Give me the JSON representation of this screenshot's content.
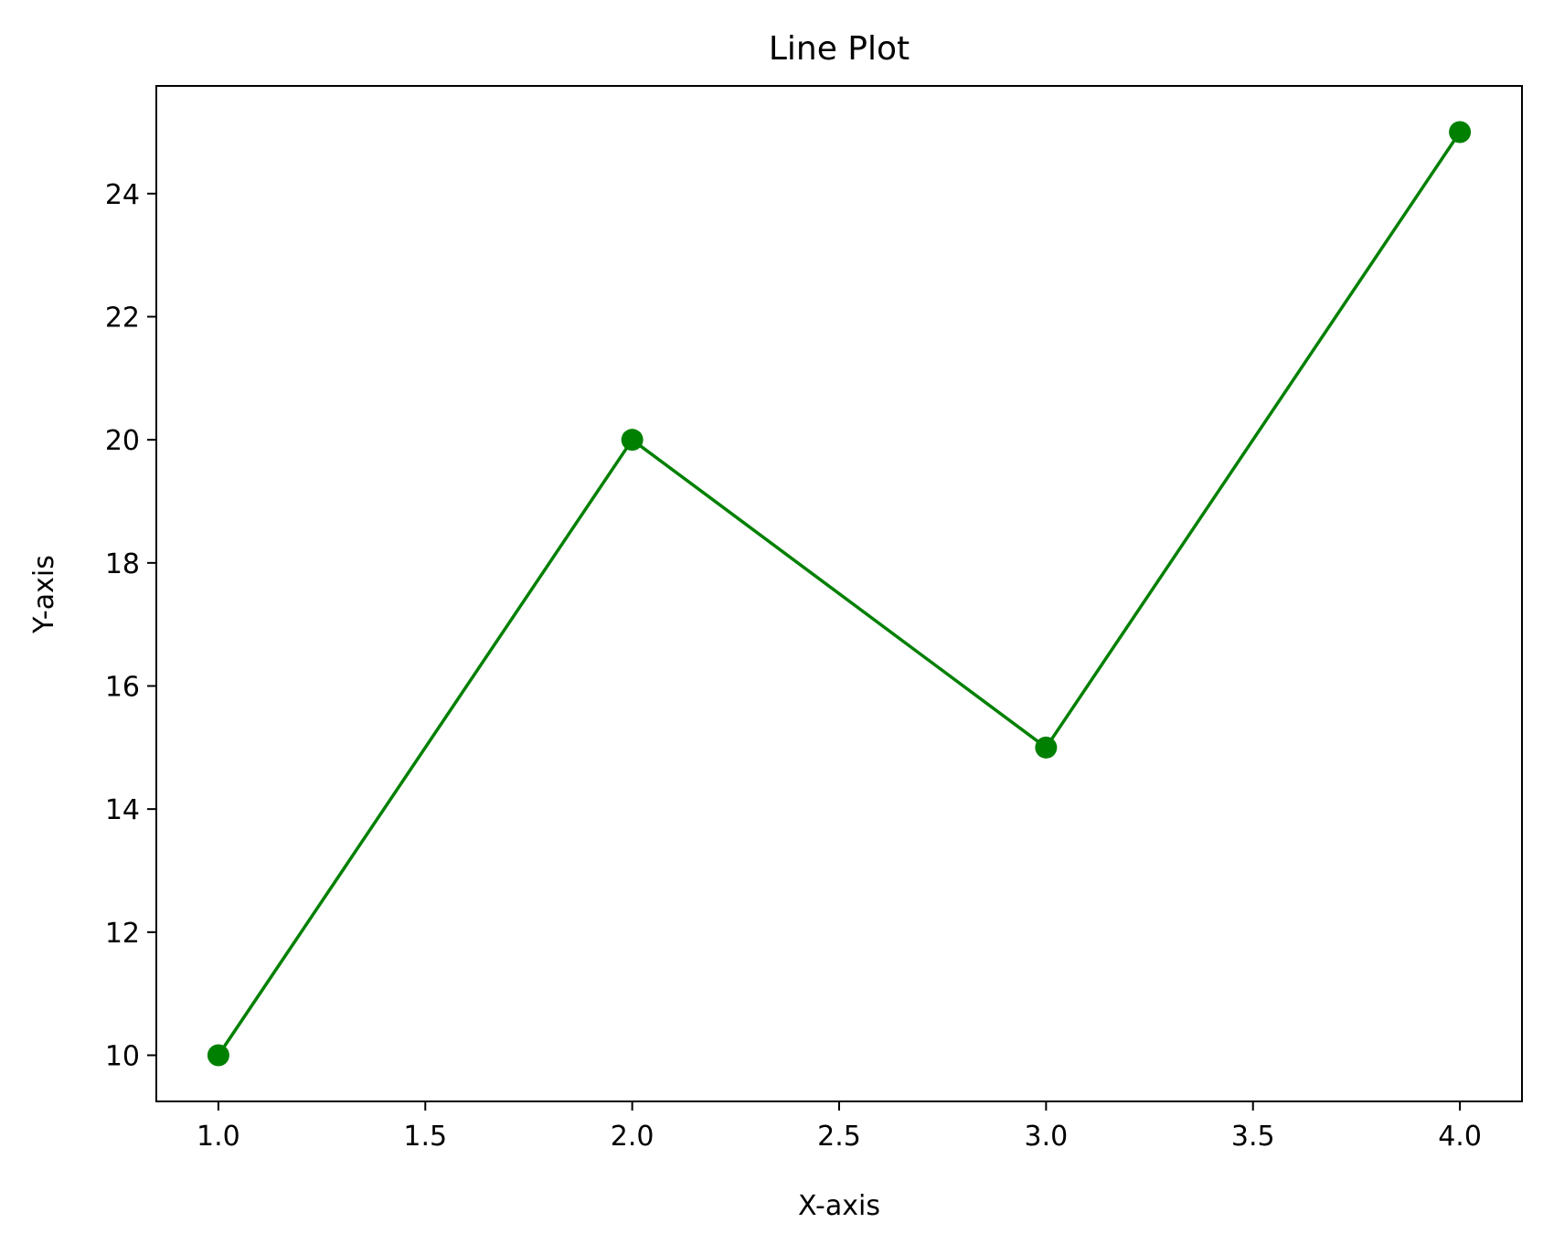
{
  "chart_data": {
    "type": "line",
    "title": "Line Plot",
    "xlabel": "X-axis",
    "ylabel": "Y-axis",
    "x": [
      1,
      2,
      3,
      4
    ],
    "series": [
      {
        "values": [
          10,
          20,
          15,
          25
        ],
        "color": "#008000",
        "marker": "circle"
      }
    ],
    "xlim": [
      0.85,
      4.15
    ],
    "ylim": [
      9.25,
      25.75
    ],
    "xticks": [
      1.0,
      1.5,
      2.0,
      2.5,
      3.0,
      3.5,
      4.0
    ],
    "xtick_labels": [
      "1.0",
      "1.5",
      "2.0",
      "2.5",
      "3.0",
      "3.5",
      "4.0"
    ],
    "yticks": [
      10,
      12,
      14,
      16,
      18,
      20,
      22,
      24
    ],
    "ytick_labels": [
      "10",
      "12",
      "14",
      "16",
      "18",
      "20",
      "22",
      "24"
    ],
    "grid": false,
    "legend": "none"
  }
}
